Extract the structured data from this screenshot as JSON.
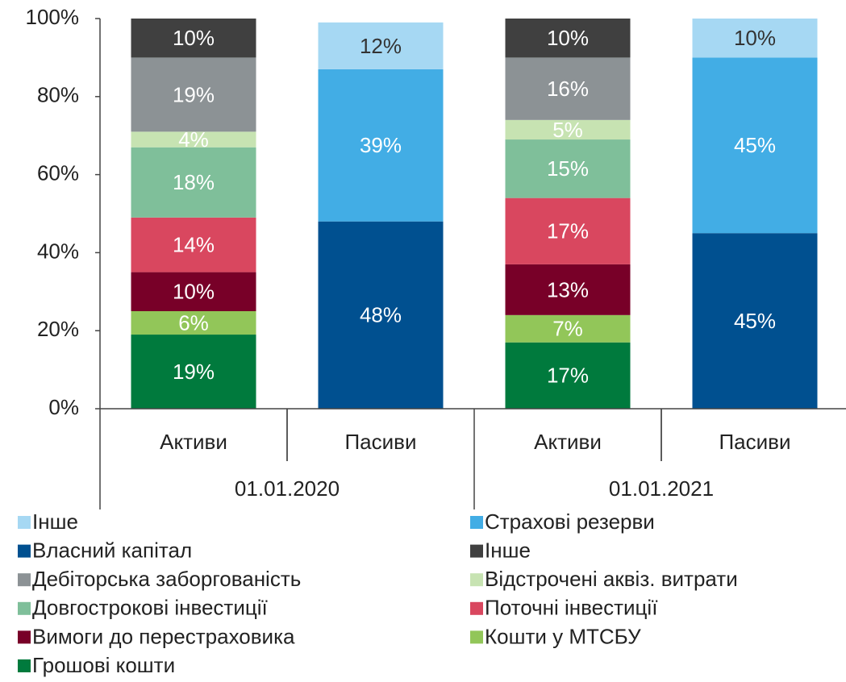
{
  "chart_data": {
    "type": "stacked_bar",
    "categories": [
      "Активи",
      "Пасиви",
      "Активи",
      "Пасиви"
    ],
    "groups": [
      "01.01.2020",
      "01.01.2021"
    ],
    "ylim": [
      0,
      100
    ],
    "yticks": [
      {
        "value": 0,
        "label": "0%"
      },
      {
        "value": 20,
        "label": "20%"
      },
      {
        "value": 40,
        "label": "40%"
      },
      {
        "value": 60,
        "label": "60%"
      },
      {
        "value": 80,
        "label": "80%"
      },
      {
        "value": 100,
        "label": "100%"
      }
    ],
    "series": [
      {
        "name": "Інше",
        "color": "#a6d8f3",
        "label_color": "#333333",
        "values": [
          null,
          12,
          null,
          10
        ],
        "value_labels": [
          null,
          "12%",
          null,
          "10%"
        ]
      },
      {
        "name": "Страхові резерви",
        "color": "#42ade5",
        "label_color": "#ffffff",
        "values": [
          null,
          39,
          null,
          45
        ],
        "value_labels": [
          null,
          "39%",
          null,
          "45%"
        ]
      },
      {
        "name": "Власний капітал",
        "color": "#005090",
        "label_color": "#ffffff",
        "values": [
          null,
          48,
          null,
          45
        ],
        "value_labels": [
          null,
          "48%",
          null,
          "45%"
        ]
      },
      {
        "name": "Інше",
        "color": "#404040",
        "label_color": "#ffffff",
        "values": [
          10,
          null,
          10,
          null
        ],
        "value_labels": [
          "10%",
          null,
          "10%",
          null
        ]
      },
      {
        "name": "Дебіторська заборгованість",
        "color": "#8c9295",
        "label_color": "#ffffff",
        "values": [
          19,
          null,
          16,
          null
        ],
        "value_labels": [
          "19%",
          null,
          "16%",
          null
        ]
      },
      {
        "name": "Відстрочені аквіз. витрати",
        "color": "#c7e3b2",
        "label_color": "#ffffff",
        "values": [
          4,
          null,
          5,
          null
        ],
        "value_labels": [
          "4%",
          null,
          "5%",
          null
        ]
      },
      {
        "name": "Довгострокові інвестиції",
        "color": "#7fbf9a",
        "label_color": "#ffffff",
        "values": [
          18,
          null,
          15,
          null
        ],
        "value_labels": [
          "18%",
          null,
          "15%",
          null
        ]
      },
      {
        "name": "Поточні інвестиції",
        "color": "#d9475f",
        "label_color": "#ffffff",
        "values": [
          14,
          null,
          17,
          null
        ],
        "value_labels": [
          "14%",
          null,
          "17%",
          null
        ]
      },
      {
        "name": "Вимоги до перестраховика",
        "color": "#780028",
        "label_color": "#ffffff",
        "values": [
          10,
          null,
          13,
          null
        ],
        "value_labels": [
          "10%",
          null,
          "13%",
          null
        ]
      },
      {
        "name": "Кошти у МТСБУ",
        "color": "#92c659",
        "label_color": "#ffffff",
        "values": [
          6,
          null,
          7,
          null
        ],
        "value_labels": [
          "6%",
          null,
          "7%",
          null
        ]
      },
      {
        "name": "Грошові кошти",
        "color": "#007a3d",
        "label_color": "#ffffff",
        "values": [
          19,
          null,
          17,
          null
        ],
        "value_labels": [
          "19%",
          null,
          "17%",
          null
        ]
      }
    ]
  }
}
